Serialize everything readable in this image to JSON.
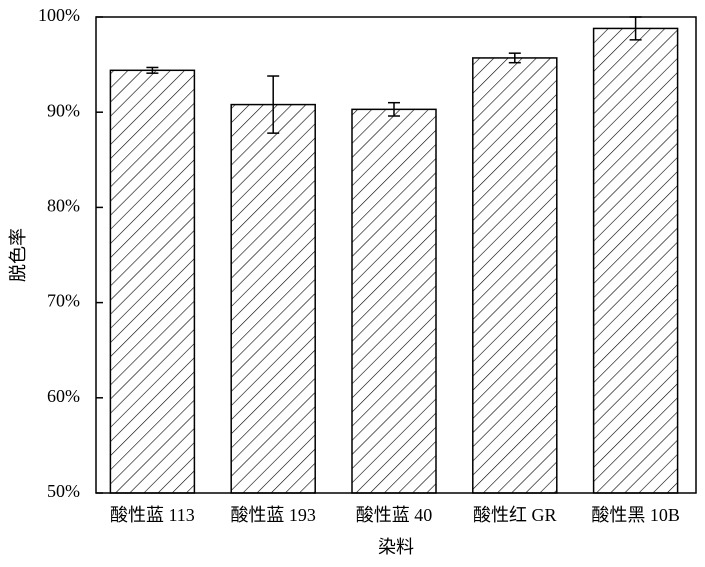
{
  "chart_data": {
    "type": "bar",
    "x_label": "染料",
    "y_label": "脱色率",
    "categories": [
      "酸性蓝 113",
      "酸性蓝 193",
      "酸性蓝 40",
      "酸性红 GR",
      "酸性黑 10B"
    ],
    "values": [
      94.4,
      90.8,
      90.3,
      95.7,
      98.8
    ],
    "errors": [
      0.3,
      3.0,
      0.7,
      0.5,
      1.2
    ],
    "color": "#000000",
    "ylim": [
      50,
      100
    ],
    "yticks": [
      {
        "value": 50,
        "label": "50%"
      },
      {
        "value": 60,
        "label": "60%"
      },
      {
        "value": 70,
        "label": "70%"
      },
      {
        "value": 80,
        "label": "80%"
      },
      {
        "value": 90,
        "label": "90%"
      },
      {
        "value": 100,
        "label": "100%"
      }
    ]
  }
}
